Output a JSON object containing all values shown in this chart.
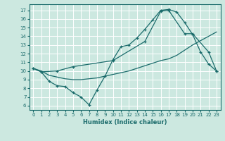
{
  "xlabel": "Humidex (Indice chaleur)",
  "bg_color": "#cce8e0",
  "grid_color": "#b0d8d0",
  "line_color": "#1a6b6b",
  "xlim": [
    -0.5,
    23.5
  ],
  "ylim": [
    5.5,
    17.7
  ],
  "xticks": [
    0,
    1,
    2,
    3,
    4,
    5,
    6,
    7,
    8,
    9,
    10,
    11,
    12,
    13,
    14,
    15,
    16,
    17,
    18,
    19,
    20,
    21,
    22,
    23
  ],
  "yticks": [
    6,
    7,
    8,
    9,
    10,
    11,
    12,
    13,
    14,
    15,
    16,
    17
  ],
  "line1_x": [
    0,
    1,
    2,
    3,
    4,
    5,
    6,
    7,
    8,
    9,
    10,
    11,
    12,
    13,
    14,
    15,
    16,
    17,
    18,
    19,
    20,
    21,
    22,
    23
  ],
  "line1_y": [
    10.3,
    9.9,
    8.8,
    8.3,
    8.2,
    7.5,
    7.0,
    6.1,
    7.8,
    9.4,
    11.3,
    12.8,
    13.0,
    13.8,
    14.8,
    15.9,
    17.0,
    17.1,
    16.8,
    15.6,
    14.2,
    12.2,
    10.8,
    10.0
  ],
  "line2_x": [
    0,
    1,
    2,
    3,
    4,
    5,
    6,
    7,
    8,
    9,
    10,
    11,
    12,
    13,
    14,
    15,
    16,
    17,
    18,
    19,
    20,
    21,
    22,
    23
  ],
  "line2_y": [
    10.3,
    10.0,
    9.5,
    9.3,
    9.1,
    9.0,
    9.0,
    9.1,
    9.2,
    9.4,
    9.6,
    9.8,
    10.0,
    10.3,
    10.6,
    10.9,
    11.2,
    11.4,
    11.8,
    12.4,
    13.0,
    13.5,
    14.0,
    14.5
  ],
  "line3_x": [
    0,
    1,
    3,
    5,
    10,
    14,
    16,
    17,
    19,
    20,
    22,
    23
  ],
  "line3_y": [
    10.3,
    9.9,
    10.0,
    10.5,
    11.2,
    13.4,
    16.9,
    17.0,
    14.3,
    14.3,
    12.2,
    10.0
  ]
}
